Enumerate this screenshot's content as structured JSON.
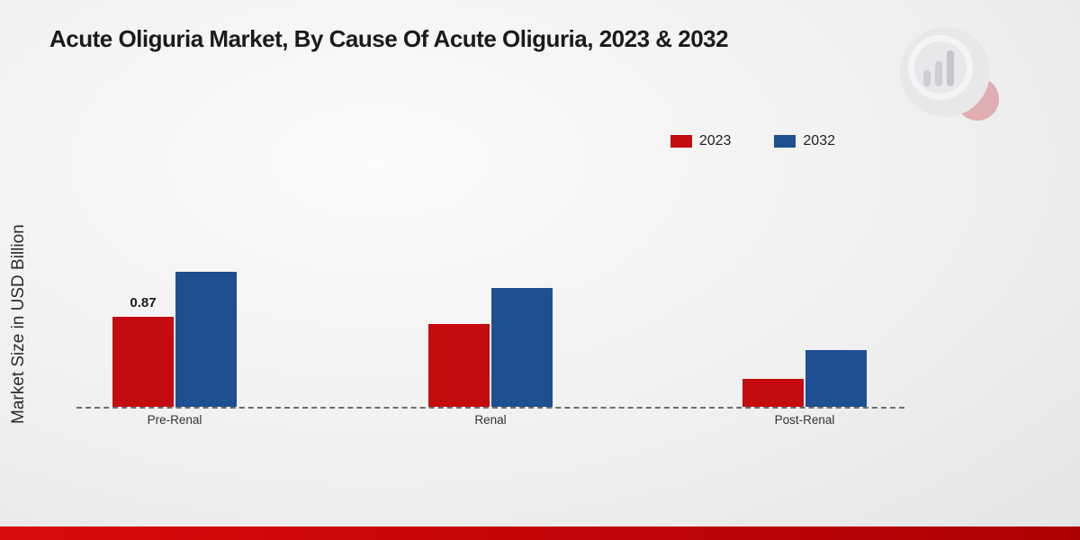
{
  "page": {
    "title": "Acute Oliguria Market, By Cause Of Acute Oliguria, 2023 & 2032",
    "y_axis_label": "Market Size in USD Billion"
  },
  "legend": {
    "items": [
      {
        "label": "2023",
        "color": "#c40b10"
      },
      {
        "label": "2032",
        "color": "#1d4f91"
      }
    ]
  },
  "chart_data": {
    "type": "bar",
    "title": "Acute Oliguria Market, By Cause Of Acute Oliguria, 2023 & 2032",
    "categories": [
      "Pre-Renal",
      "Renal",
      "Post-Renal"
    ],
    "series": [
      {
        "name": "2023",
        "color": "#c40b10",
        "values": [
          0.87,
          0.8,
          0.27
        ],
        "labels": [
          "0.87",
          "",
          ""
        ]
      },
      {
        "name": "2032",
        "color": "#1d4f91",
        "values": [
          1.3,
          1.15,
          0.55
        ],
        "labels": [
          "",
          "",
          ""
        ]
      }
    ],
    "xlabel": "",
    "ylabel": "Market Size in USD Billion",
    "ylim": [
      0,
      1.6
    ],
    "grid": false,
    "legend_position": "top-right",
    "baseline_style": "dashed",
    "units": "USD Billion"
  },
  "branding": {
    "footer_color": "#c90008",
    "logo_name": "market-research-watermark-logo"
  }
}
